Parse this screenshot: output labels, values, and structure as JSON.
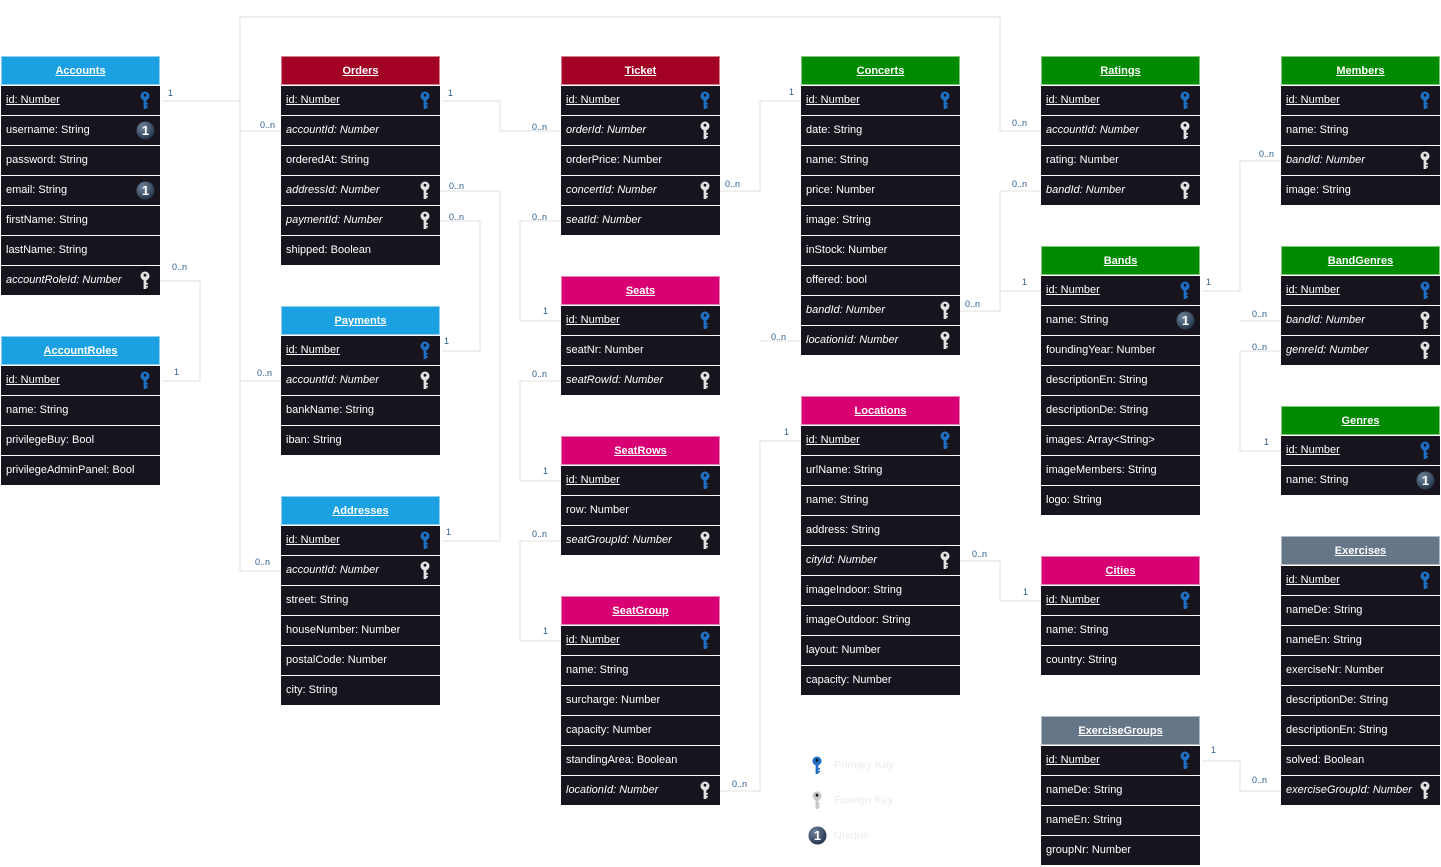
{
  "colors": {
    "blue": "#1ba1e2",
    "red": "#a20025",
    "magenta": "#d80073",
    "green": "#008a00",
    "gray": "#647687",
    "pk": "#1f6fc5",
    "fk": "#e3e3e3",
    "connector": "#e6e6e6",
    "cardinality": "#2b5a8a"
  },
  "entities": [
    {
      "title": "Accounts",
      "color": "blue",
      "rows": [
        {
          "text": "id: Number",
          "kind": "pk"
        },
        {
          "text": "username: String",
          "kind": "unique"
        },
        {
          "text": "password: String",
          "kind": "plain"
        },
        {
          "text": "email: String",
          "kind": "unique"
        },
        {
          "text": "firstName: String",
          "kind": "plain"
        },
        {
          "text": "lastName: String",
          "kind": "plain"
        },
        {
          "text": "accountRoleId: Number",
          "kind": "fk"
        }
      ]
    },
    {
      "title": "AccountRoles",
      "color": "blue",
      "rows": [
        {
          "text": "id: Number",
          "kind": "pk"
        },
        {
          "text": "name: String",
          "kind": "plain"
        },
        {
          "text": "privilegeBuy: Bool",
          "kind": "plain"
        },
        {
          "text": "privilegeAdminPanel: Bool",
          "kind": "plain"
        }
      ]
    },
    {
      "title": "Orders",
      "color": "red",
      "rows": [
        {
          "text": "id: Number",
          "kind": "pk"
        },
        {
          "text": "accountId: Number",
          "kind": "fk-noicon"
        },
        {
          "text": "orderedAt: String",
          "kind": "plain"
        },
        {
          "text": "addressId: Number",
          "kind": "fk"
        },
        {
          "text": "paymentId: Number",
          "kind": "fk"
        },
        {
          "text": "shipped: Boolean",
          "kind": "plain"
        }
      ]
    },
    {
      "title": "Payments",
      "color": "blue",
      "rows": [
        {
          "text": "id: Number",
          "kind": "pk"
        },
        {
          "text": "accountId: Number",
          "kind": "fk"
        },
        {
          "text": "bankName: String",
          "kind": "plain"
        },
        {
          "text": "iban: String",
          "kind": "plain"
        }
      ]
    },
    {
      "title": "Addresses",
      "color": "blue",
      "rows": [
        {
          "text": "id: Number",
          "kind": "pk"
        },
        {
          "text": "accountId: Number",
          "kind": "fk"
        },
        {
          "text": "street: String",
          "kind": "plain"
        },
        {
          "text": "houseNumber: Number",
          "kind": "plain"
        },
        {
          "text": "postalCode: Number",
          "kind": "plain"
        },
        {
          "text": "city: String",
          "kind": "plain"
        }
      ]
    },
    {
      "title": "Ticket",
      "color": "red",
      "rows": [
        {
          "text": "id: Number",
          "kind": "pk"
        },
        {
          "text": "orderId: Number",
          "kind": "fk"
        },
        {
          "text": "orderPrice: Number",
          "kind": "plain"
        },
        {
          "text": "concertId: Number",
          "kind": "fk"
        },
        {
          "text": "seatId: Number",
          "kind": "fk-noicon"
        }
      ]
    },
    {
      "title": "Seats",
      "color": "magenta",
      "rows": [
        {
          "text": "id: Number",
          "kind": "pk"
        },
        {
          "text": "seatNr: Number",
          "kind": "plain"
        },
        {
          "text": "seatRowId: Number",
          "kind": "fk"
        }
      ]
    },
    {
      "title": "SeatRows",
      "color": "magenta",
      "rows": [
        {
          "text": "id: Number",
          "kind": "pk"
        },
        {
          "text": "row: Number",
          "kind": "plain"
        },
        {
          "text": "seatGroupId: Number",
          "kind": "fk"
        }
      ]
    },
    {
      "title": "SeatGroup",
      "color": "magenta",
      "rows": [
        {
          "text": "id: Number",
          "kind": "pk"
        },
        {
          "text": "name: String",
          "kind": "plain"
        },
        {
          "text": "surcharge: Number",
          "kind": "plain"
        },
        {
          "text": "capacity: Number",
          "kind": "plain"
        },
        {
          "text": "standingArea: Boolean",
          "kind": "plain"
        },
        {
          "text": "locationId: Number",
          "kind": "fk"
        }
      ]
    },
    {
      "title": "Concerts",
      "color": "green",
      "rows": [
        {
          "text": "id: Number",
          "kind": "pk"
        },
        {
          "text": "date: String",
          "kind": "plain"
        },
        {
          "text": "name: String",
          "kind": "plain"
        },
        {
          "text": "price: Number",
          "kind": "plain"
        },
        {
          "text": "image: String",
          "kind": "plain"
        },
        {
          "text": "inStock: Number",
          "kind": "plain"
        },
        {
          "text": "offered: bool",
          "kind": "plain"
        },
        {
          "text": "bandId: Number",
          "kind": "fk"
        },
        {
          "text": "locationId: Number",
          "kind": "fk"
        }
      ]
    },
    {
      "title": "Locations",
      "color": "magenta",
      "rows": [
        {
          "text": "id: Number",
          "kind": "pk"
        },
        {
          "text": "urlName: String",
          "kind": "plain"
        },
        {
          "text": "name: String",
          "kind": "plain"
        },
        {
          "text": "address: String",
          "kind": "plain"
        },
        {
          "text": "cityId: Number",
          "kind": "fk"
        },
        {
          "text": "imageIndoor: String",
          "kind": "plain"
        },
        {
          "text": "imageOutdoor: String",
          "kind": "plain"
        },
        {
          "text": "layout: Number",
          "kind": "plain"
        },
        {
          "text": "capacity: Number",
          "kind": "plain"
        }
      ]
    },
    {
      "title": "Ratings",
      "color": "green",
      "rows": [
        {
          "text": "id: Number",
          "kind": "pk"
        },
        {
          "text": "accountId: Number",
          "kind": "fk"
        },
        {
          "text": "rating: Number",
          "kind": "plain"
        },
        {
          "text": "bandId: Number",
          "kind": "fk"
        }
      ]
    },
    {
      "title": "Bands",
      "color": "green",
      "rows": [
        {
          "text": "id: Number",
          "kind": "pk"
        },
        {
          "text": "name: String",
          "kind": "unique"
        },
        {
          "text": "foundingYear: Number",
          "kind": "plain"
        },
        {
          "text": "descriptionEn: String",
          "kind": "plain"
        },
        {
          "text": "descriptionDe: String",
          "kind": "plain"
        },
        {
          "text": "images: Array<String>",
          "kind": "plain"
        },
        {
          "text": "imageMembers: String",
          "kind": "plain"
        },
        {
          "text": "logo: String",
          "kind": "plain"
        }
      ]
    },
    {
      "title": "Cities",
      "color": "magenta",
      "rows": [
        {
          "text": "id: Number",
          "kind": "pk"
        },
        {
          "text": "name: String",
          "kind": "plain"
        },
        {
          "text": "country: String",
          "kind": "plain"
        }
      ]
    },
    {
      "title": "ExerciseGroups",
      "color": "gray",
      "rows": [
        {
          "text": "id: Number",
          "kind": "pk"
        },
        {
          "text": "nameDe: String",
          "kind": "plain"
        },
        {
          "text": "nameEn: String",
          "kind": "plain"
        },
        {
          "text": "groupNr: Number",
          "kind": "plain"
        }
      ]
    },
    {
      "title": "Members",
      "color": "green",
      "rows": [
        {
          "text": "id: Number",
          "kind": "pk"
        },
        {
          "text": "name: String",
          "kind": "plain"
        },
        {
          "text": "bandId: Number",
          "kind": "fk"
        },
        {
          "text": "image: String",
          "kind": "plain"
        }
      ]
    },
    {
      "title": "BandGenres",
      "color": "green",
      "rows": [
        {
          "text": "id: Number",
          "kind": "pk"
        },
        {
          "text": "bandId: Number",
          "kind": "fk"
        },
        {
          "text": "genreId: Number",
          "kind": "fk"
        }
      ]
    },
    {
      "title": "Genres",
      "color": "green",
      "rows": [
        {
          "text": "id: Number",
          "kind": "pk"
        },
        {
          "text": "name: String",
          "kind": "unique"
        }
      ]
    },
    {
      "title": "Exercises",
      "color": "gray",
      "rows": [
        {
          "text": "id: Number",
          "kind": "pk"
        },
        {
          "text": "nameDe: String",
          "kind": "plain"
        },
        {
          "text": "nameEn: String",
          "kind": "plain"
        },
        {
          "text": "exerciseNr: Number",
          "kind": "plain"
        },
        {
          "text": "descriptionDe: String",
          "kind": "plain"
        },
        {
          "text": "descriptionEn: String",
          "kind": "plain"
        },
        {
          "text": "solved: Boolean",
          "kind": "plain"
        },
        {
          "text": "exerciseGroupId: Number",
          "kind": "fk"
        }
      ]
    }
  ],
  "connectors": [
    {
      "labels": [
        "1",
        "0..n"
      ]
    },
    {
      "labels": [
        "0..n"
      ]
    },
    {
      "labels": [
        "0..n"
      ]
    },
    {
      "labels": [
        "0..n"
      ]
    },
    {
      "labels": [
        "0..n",
        "1"
      ]
    },
    {
      "labels": [
        "0..n",
        "1"
      ]
    },
    {
      "labels": [
        "0..n",
        "1"
      ]
    },
    {
      "labels": [
        "1",
        "0..n"
      ]
    },
    {
      "labels": [
        "0..n",
        "1"
      ]
    },
    {
      "labels": [
        "0..n",
        "1"
      ]
    },
    {
      "labels": [
        "0..n",
        "1"
      ]
    },
    {
      "labels": [
        "0..n",
        "1"
      ]
    },
    {
      "labels": [
        "0..n",
        "1"
      ]
    },
    {
      "labels": [
        "0..n"
      ]
    },
    {
      "labels": [
        "0..n",
        "1"
      ]
    },
    {
      "labels": [
        "0..n"
      ]
    },
    {
      "labels": [
        "0..n",
        "1"
      ]
    },
    {
      "labels": [
        "0..n",
        "1"
      ]
    },
    {
      "labels": [
        "0..n"
      ]
    },
    {
      "labels": [
        "0..n",
        "1"
      ]
    },
    {
      "labels": [
        "0..n",
        "1"
      ]
    }
  ],
  "legend": [
    {
      "label": "Primary Key",
      "icon": "pk"
    },
    {
      "label": "Foreign Key",
      "icon": "fk"
    },
    {
      "label": "Unique",
      "icon": "unique"
    }
  ]
}
